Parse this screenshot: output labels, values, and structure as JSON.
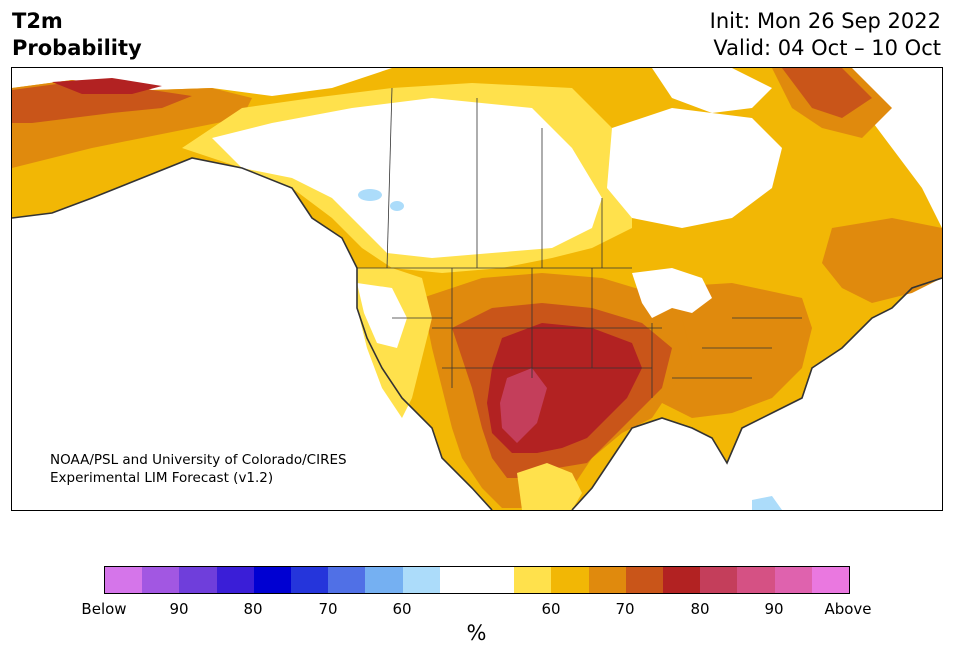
{
  "title": {
    "line1": "T2m",
    "line2": "Probability"
  },
  "dates": {
    "init": "Init: Mon 26 Sep 2022",
    "valid": "Valid: 04 Oct – 10 Oct"
  },
  "credit": {
    "line1": "NOAA/PSL and University of Colorado/CIRES",
    "line2": "Experimental LIM Forecast (v1.2)"
  },
  "colorbar": {
    "colors": [
      "#d575ea",
      "#a257e2",
      "#6f3edb",
      "#3a1ed7",
      "#0000d2",
      "#2535db",
      "#5070e6",
      "#75b0f2",
      "#acdcfa",
      "#ffffff",
      "#ffffff",
      "#ffe14c",
      "#f2b705",
      "#e08a0d",
      "#c95519",
      "#b22222",
      "#c43e5b",
      "#d55184",
      "#df62ae",
      "#ea78e0"
    ],
    "tick_labels": [
      "Below",
      "90",
      "80",
      "70",
      "60",
      "60",
      "70",
      "80",
      "90",
      "Above"
    ],
    "unit": "%"
  },
  "legend_classes": {
    "below_normal": [
      90,
      80,
      70,
      60
    ],
    "above_normal": [
      60,
      70,
      80,
      90
    ]
  }
}
